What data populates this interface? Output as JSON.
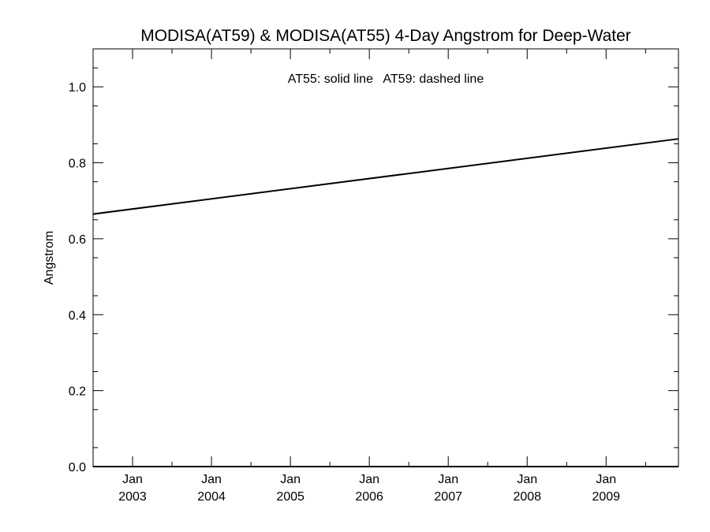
{
  "chart_data": {
    "type": "line",
    "title": "MODISA(AT59) & MODISA(AT55) 4-Day Angstrom for Deep-Water",
    "xlabel": "",
    "ylabel": "Angstrom",
    "annotation": "AT55: solid line   AT59: dashed line",
    "xlim": [
      "2002-07",
      "2009-12"
    ],
    "ylim": [
      0.0,
      1.1
    ],
    "yticks": [
      0.0,
      0.2,
      0.4,
      0.6,
      0.8,
      1.0
    ],
    "ytick_labels": [
      "0.0",
      "0.2",
      "0.4",
      "0.6",
      "0.8",
      "1.0"
    ],
    "xticks": [
      {
        "date": "2003-01",
        "month": "Jan",
        "year": "2003"
      },
      {
        "date": "2004-01",
        "month": "Jan",
        "year": "2004"
      },
      {
        "date": "2005-01",
        "month": "Jan",
        "year": "2005"
      },
      {
        "date": "2006-01",
        "month": "Jan",
        "year": "2006"
      },
      {
        "date": "2007-01",
        "month": "Jan",
        "year": "2007"
      },
      {
        "date": "2008-01",
        "month": "Jan",
        "year": "2008"
      },
      {
        "date": "2009-01",
        "month": "Jan",
        "year": "2009"
      }
    ],
    "grid": false,
    "series": [
      {
        "style": "solid",
        "color": "#000000",
        "points": [
          {
            "x": "2002-07",
            "y": 0.665
          },
          {
            "x": "2009-12",
            "y": 0.863
          }
        ]
      }
    ]
  }
}
